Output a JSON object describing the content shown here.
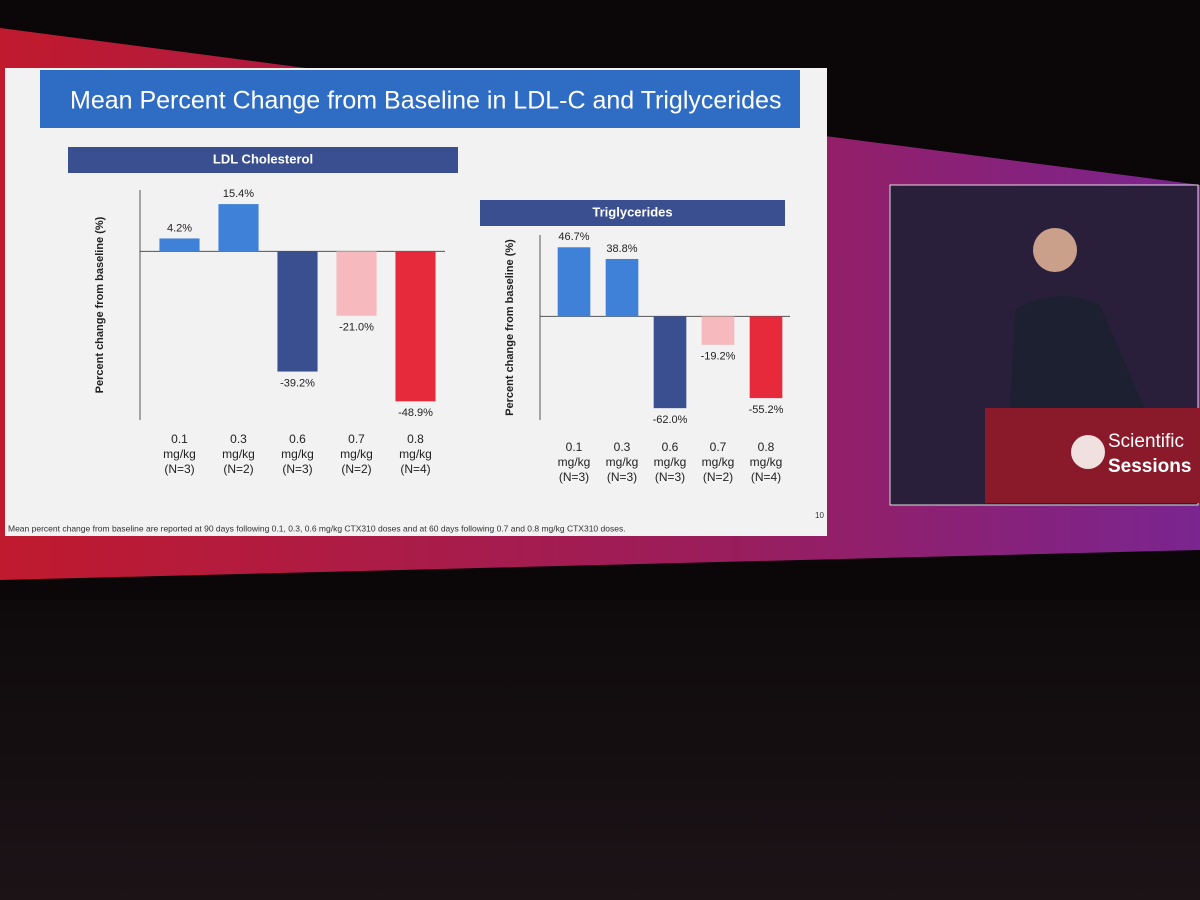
{
  "slide": {
    "title": "Mean Percent Change from Baseline in LDL-C and Triglycerides",
    "footnote": "Mean percent change from baseline are reported at 90 days following 0.1, 0.3, 0.6 mg/kg CTX310 doses and at 60 days following 0.7 and 0.8 mg/kg CTX310 doses.",
    "page_number": "10"
  },
  "podium": {
    "line1": "Scientific",
    "line2": "Sessions"
  },
  "chart_data": [
    {
      "type": "bar",
      "title": "LDL Cholesterol",
      "y_label": "Percent change from baseline (%)",
      "categories": [
        "0.1\nmg/kg\n(N=3)",
        "0.3\nmg/kg\n(N=2)",
        "0.6\nmg/kg\n(N=3)",
        "0.7\nmg/kg\n(N=2)",
        "0.8\nmg/kg\n(N=4)"
      ],
      "values": [
        4.2,
        15.4,
        -39.2,
        -21.0,
        -48.9
      ],
      "value_labels": [
        "4.2%",
        "15.4%",
        "-39.2%",
        "-21.0%",
        "-48.9%"
      ],
      "colors": [
        "#3f80d8",
        "#3f80d8",
        "#3a4f90",
        "#f5b9be",
        "#e62a3b"
      ],
      "ylim": [
        -55,
        20
      ]
    },
    {
      "type": "bar",
      "title": "Triglycerides",
      "y_label": "Percent change from baseline (%)",
      "categories": [
        "0.1\nmg/kg\n(N=3)",
        "0.3\nmg/kg\n(N=3)",
        "0.6\nmg/kg\n(N=3)",
        "0.7\nmg/kg\n(N=2)",
        "0.8\nmg/kg\n(N=4)"
      ],
      "values": [
        46.7,
        38.8,
        -62.0,
        -19.2,
        -55.2
      ],
      "value_labels": [
        "46.7%",
        "38.8%",
        "-62.0%",
        "-19.2%",
        "-55.2%"
      ],
      "colors": [
        "#3f80d8",
        "#3f80d8",
        "#3a4f90",
        "#f5b9be",
        "#e62a3b"
      ],
      "ylim": [
        -70,
        55
      ]
    }
  ]
}
